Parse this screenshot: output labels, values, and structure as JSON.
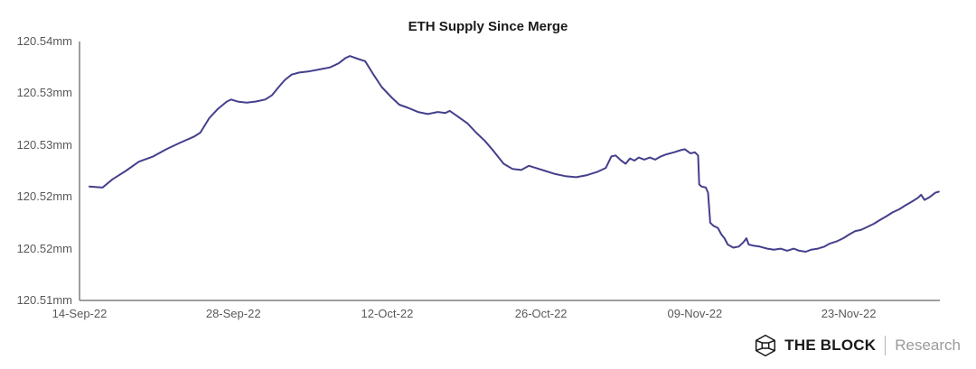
{
  "chart_data": {
    "type": "line",
    "title": "ETH Supply Since Merge",
    "grid": false,
    "legend": "none",
    "line_color": "#443f8c",
    "background_color": "#ffffff",
    "axis_color": "#7f7f7f",
    "tick_text_color": "#595959",
    "x_axis": {
      "unit": "date",
      "tick_labels": [
        "14-Sep-22",
        "28-Sep-22",
        "12-Oct-22",
        "26-Oct-22",
        "09-Nov-22",
        "23-Nov-22"
      ],
      "tick_days": [
        0,
        14,
        28,
        42,
        56,
        70
      ],
      "range_days": [
        0,
        78.3
      ]
    },
    "y_axis": {
      "unit": "mm (millions of ETH)",
      "tick_labels": [
        "120.54mm",
        "120.53mm",
        "120.53mm",
        "120.52mm",
        "120.52mm",
        "120.51mm"
      ],
      "tick_values": [
        120.54,
        120.535,
        120.53,
        120.525,
        120.52,
        120.515
      ],
      "range": [
        120.515,
        120.54
      ]
    },
    "series": [
      {
        "name": "ETH supply (millions)",
        "points": [
          [
            0.9,
            120.526
          ],
          [
            2.1,
            120.5259
          ],
          [
            3.0,
            120.5267
          ],
          [
            4.2,
            120.5275
          ],
          [
            5.4,
            120.5284
          ],
          [
            6.7,
            120.5289
          ],
          [
            7.9,
            120.5296
          ],
          [
            9.1,
            120.5302
          ],
          [
            10.4,
            120.5308
          ],
          [
            11.0,
            120.5312
          ],
          [
            11.8,
            120.5326
          ],
          [
            12.6,
            120.5335
          ],
          [
            13.4,
            120.5342
          ],
          [
            13.8,
            120.5344
          ],
          [
            14.4,
            120.5342
          ],
          [
            15.2,
            120.5341
          ],
          [
            16.0,
            120.5342
          ],
          [
            16.9,
            120.5344
          ],
          [
            17.5,
            120.5348
          ],
          [
            18.2,
            120.5357
          ],
          [
            18.7,
            120.5363
          ],
          [
            19.3,
            120.5368
          ],
          [
            20.0,
            120.537
          ],
          [
            20.8,
            120.5371
          ],
          [
            21.8,
            120.5373
          ],
          [
            22.8,
            120.5375
          ],
          [
            23.6,
            120.5379
          ],
          [
            24.2,
            120.5384
          ],
          [
            24.6,
            120.5386
          ],
          [
            25.4,
            120.5383
          ],
          [
            26.0,
            120.5381
          ],
          [
            26.7,
            120.5369
          ],
          [
            27.5,
            120.5356
          ],
          [
            28.4,
            120.5346
          ],
          [
            29.1,
            120.5339
          ],
          [
            29.9,
            120.5336
          ],
          [
            30.8,
            120.5332
          ],
          [
            31.7,
            120.533
          ],
          [
            32.6,
            120.5332
          ],
          [
            33.3,
            120.5331
          ],
          [
            33.7,
            120.5333
          ],
          [
            34.5,
            120.5327
          ],
          [
            35.3,
            120.5321
          ],
          [
            36.1,
            120.5312
          ],
          [
            36.9,
            120.5304
          ],
          [
            37.7,
            120.5294
          ],
          [
            38.6,
            120.5282
          ],
          [
            39.4,
            120.5277
          ],
          [
            40.2,
            120.5276
          ],
          [
            40.9,
            120.528
          ],
          [
            41.5,
            120.5278
          ],
          [
            42.4,
            120.5275
          ],
          [
            43.3,
            120.5272
          ],
          [
            44.2,
            120.527
          ],
          [
            45.2,
            120.5269
          ],
          [
            46.2,
            120.5271
          ],
          [
            47.1,
            120.5274
          ],
          [
            47.9,
            120.5278
          ],
          [
            48.4,
            120.5289
          ],
          [
            48.8,
            120.529
          ],
          [
            49.3,
            120.5285
          ],
          [
            49.7,
            120.5282
          ],
          [
            50.1,
            120.5287
          ],
          [
            50.5,
            120.5285
          ],
          [
            50.9,
            120.5288
          ],
          [
            51.4,
            120.5286
          ],
          [
            51.9,
            120.5288
          ],
          [
            52.4,
            120.5286
          ],
          [
            52.9,
            120.5289
          ],
          [
            53.4,
            120.5291
          ],
          [
            54.1,
            120.5293
          ],
          [
            54.7,
            120.5295
          ],
          [
            55.1,
            120.5296
          ],
          [
            55.6,
            120.5292
          ],
          [
            56.0,
            120.5293
          ],
          [
            56.3,
            120.529
          ],
          [
            56.4,
            120.5262
          ],
          [
            56.6,
            120.526
          ],
          [
            57.0,
            120.5259
          ],
          [
            57.2,
            120.5254
          ],
          [
            57.4,
            120.5225
          ],
          [
            57.7,
            120.5222
          ],
          [
            58.1,
            120.522
          ],
          [
            58.4,
            120.5214
          ],
          [
            58.7,
            120.521
          ],
          [
            59.0,
            120.5204
          ],
          [
            59.5,
            120.5201
          ],
          [
            60.0,
            120.5202
          ],
          [
            60.4,
            120.5206
          ],
          [
            60.7,
            120.521
          ],
          [
            60.9,
            120.5204
          ],
          [
            61.3,
            120.5203
          ],
          [
            61.9,
            120.5202
          ],
          [
            62.6,
            120.52
          ],
          [
            63.2,
            120.5199
          ],
          [
            63.8,
            120.52
          ],
          [
            64.4,
            120.5198
          ],
          [
            65.0,
            120.52
          ],
          [
            65.5,
            120.5198
          ],
          [
            66.1,
            120.5197
          ],
          [
            66.6,
            120.5199
          ],
          [
            67.2,
            120.52
          ],
          [
            67.8,
            120.5202
          ],
          [
            68.3,
            120.5205
          ],
          [
            68.9,
            120.5207
          ],
          [
            69.5,
            120.521
          ],
          [
            70.1,
            120.5214
          ],
          [
            70.6,
            120.5217
          ],
          [
            71.1,
            120.5218
          ],
          [
            71.7,
            120.5221
          ],
          [
            72.3,
            120.5224
          ],
          [
            72.9,
            120.5228
          ],
          [
            73.4,
            120.5231
          ],
          [
            74.0,
            120.5235
          ],
          [
            74.6,
            120.5238
          ],
          [
            75.2,
            120.5242
          ],
          [
            75.7,
            120.5245
          ],
          [
            76.3,
            120.5249
          ],
          [
            76.6,
            120.5252
          ],
          [
            76.9,
            120.5247
          ],
          [
            77.4,
            120.525
          ],
          [
            77.9,
            120.5254
          ],
          [
            78.2,
            120.5255
          ]
        ]
      }
    ]
  },
  "footer": {
    "brand_bold": "THE BLOCK",
    "brand_light": "Research",
    "logo_icon": "the-block-cube-icon"
  }
}
